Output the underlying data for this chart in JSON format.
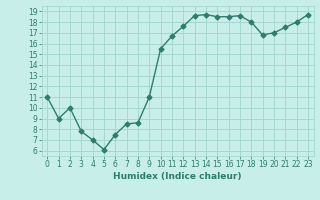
{
  "x": [
    0,
    1,
    2,
    3,
    4,
    5,
    6,
    7,
    8,
    9,
    10,
    11,
    12,
    13,
    14,
    15,
    16,
    17,
    18,
    19,
    20,
    21,
    22,
    23
  ],
  "y": [
    11,
    9,
    10,
    7.8,
    7,
    6.1,
    7.5,
    8.5,
    8.6,
    11.0,
    15.5,
    16.7,
    17.6,
    18.6,
    18.7,
    18.5,
    18.5,
    18.6,
    18.0,
    16.8,
    17.0,
    17.5,
    18.0,
    18.7
  ],
  "line_color": "#2e7d6e",
  "marker": "D",
  "marker_size": 2.5,
  "bg_color": "#c8eeea",
  "grid_color": "#a0d4ce",
  "xlabel": "Humidex (Indice chaleur)",
  "ylabel": "",
  "ylim": [
    5.5,
    19.5
  ],
  "xlim": [
    -0.5,
    23.5
  ],
  "yticks": [
    6,
    7,
    8,
    9,
    10,
    11,
    12,
    13,
    14,
    15,
    16,
    17,
    18,
    19
  ],
  "xticks": [
    0,
    1,
    2,
    3,
    4,
    5,
    6,
    7,
    8,
    9,
    10,
    11,
    12,
    13,
    14,
    15,
    16,
    17,
    18,
    19,
    20,
    21,
    22,
    23
  ],
  "xtick_labels": [
    "0",
    "1",
    "2",
    "3",
    "4",
    "5",
    "6",
    "7",
    "8",
    "9",
    "10",
    "11",
    "12",
    "13",
    "14",
    "15",
    "16",
    "17",
    "18",
    "19",
    "20",
    "21",
    "22",
    "23"
  ],
  "tick_fontsize": 5.5,
  "xlabel_fontsize": 6.5,
  "line_width": 1.0
}
